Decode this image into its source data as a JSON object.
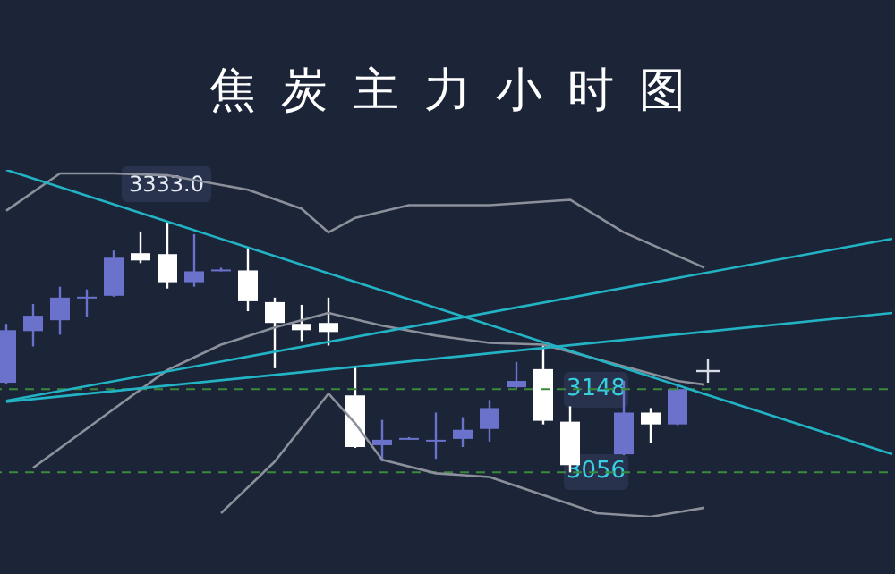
{
  "chart_data": {
    "type": "candlestick",
    "title": "焦炭主力小时图",
    "categories": [
      null,
      null,
      null,
      null,
      null,
      null,
      null,
      null,
      null,
      null,
      null,
      null,
      null,
      null,
      null,
      null,
      null,
      null,
      null,
      null,
      null,
      null,
      null,
      null,
      null,
      null,
      null,
      null,
      null,
      null,
      null,
      null,
      null,
      null
    ],
    "ohlc": [
      [
        3155,
        3220,
        3153,
        3213
      ],
      [
        3212,
        3242,
        3195,
        3229
      ],
      [
        3224,
        3261,
        3208,
        3249
      ],
      [
        3249,
        3258,
        3228,
        3250
      ],
      [
        3251,
        3301,
        3250,
        3293
      ],
      [
        3298,
        3322,
        3287,
        3290
      ],
      [
        3297,
        3333,
        3259,
        3266
      ],
      [
        3266,
        3319,
        3261,
        3278
      ],
      [
        3279,
        3282,
        3278,
        3280
      ],
      [
        3279,
        3305,
        3234,
        3245
      ],
      [
        3244,
        3249,
        3171,
        3221
      ],
      [
        3220,
        3241,
        3201,
        3213
      ],
      [
        3221,
        3249,
        3196,
        3211
      ],
      [
        3141,
        3173,
        3083,
        3084
      ],
      [
        3086,
        3114,
        3068,
        3092
      ],
      [
        3093,
        3095,
        3092,
        3094
      ],
      [
        3091,
        3122,
        3071,
        3092
      ],
      [
        3093,
        3117,
        3084,
        3103
      ],
      [
        3104,
        3136,
        3090,
        3127
      ],
      [
        3150,
        3178,
        3149,
        3157
      ],
      [
        3170,
        3196,
        3109,
        3113
      ],
      [
        3112,
        3129,
        3056,
        3064
      ],
      null,
      [
        3076,
        3157,
        3075,
        3122
      ],
      [
        3122,
        3127,
        3088,
        3109
      ],
      [
        3109,
        3151,
        3108,
        3148
      ],
      null,
      null,
      null,
      null,
      null,
      null,
      null,
      null
    ],
    "colors": [
      "#6a72cc",
      "#6a72cc",
      "#6a72cc",
      "#6a72cc",
      "#6a72cc",
      "#ffffff",
      "#ffffff",
      "#6a72cc",
      "#6a72cc",
      "#ffffff",
      "#ffffff",
      "#ffffff",
      "#ffffff",
      "#ffffff",
      "#6a72cc",
      "#6a72cc",
      "#6a72cc",
      "#6a72cc",
      "#6a72cc",
      "#6a72cc",
      "#ffffff",
      "#ffffff",
      null,
      "#6a72cc",
      "#ffffff",
      "#6a72cc",
      null,
      null,
      null,
      null,
      null,
      null,
      null,
      null
    ],
    "series": [
      {
        "type": "line",
        "color": "#8c909a",
        "values": [
          3345,
          null,
          3386,
          null,
          3386,
          null,
          3384,
          null,
          null,
          3368,
          null,
          3347,
          3321,
          3337,
          null,
          3351,
          null,
          null,
          3351,
          null,
          null,
          3357,
          null,
          3321,
          null,
          null,
          3282,
          null,
          null,
          null,
          null,
          null,
          null,
          null
        ]
      },
      {
        "type": "line",
        "color": "#8c909a",
        "values": [
          null,
          3061,
          null,
          null,
          3126,
          null,
          3169,
          null,
          3197,
          null,
          3216,
          null,
          3232,
          null,
          3218,
          null,
          3207,
          null,
          3199,
          null,
          3197,
          null,
          null,
          3173,
          null,
          3157,
          3153,
          null,
          null,
          null,
          null,
          null,
          null,
          null
        ]
      },
      {
        "type": "line",
        "color": "#8c909a",
        "values": [
          null,
          null,
          null,
          null,
          null,
          null,
          null,
          null,
          3011,
          null,
          3068,
          null,
          3143,
          3110,
          3070,
          null,
          3055,
          null,
          3051,
          null,
          3031,
          null,
          3011,
          null,
          3007,
          null,
          3017,
          null,
          null,
          null,
          null,
          null,
          null,
          null
        ]
      },
      {
        "type": "line",
        "color": "#22b4c4",
        "values": [
          3390,
          null,
          null,
          null,
          null,
          null,
          null,
          null,
          null,
          null,
          null,
          null,
          null,
          null,
          null,
          null,
          null,
          null,
          null,
          null,
          null,
          null,
          null,
          null,
          null,
          null,
          null,
          null,
          null,
          null,
          null,
          null,
          null,
          3076
        ]
      },
      {
        "type": "line",
        "color": "#22b4c4",
        "values": [
          3135,
          null,
          null,
          null,
          null,
          null,
          null,
          null,
          null,
          null,
          null,
          null,
          null,
          null,
          null,
          null,
          null,
          null,
          null,
          null,
          null,
          null,
          null,
          null,
          null,
          null,
          null,
          null,
          null,
          null,
          null,
          null,
          null,
          3314
        ]
      },
      {
        "type": "line",
        "color": "#22b4c4",
        "values": [
          3134,
          null,
          null,
          null,
          null,
          null,
          null,
          null,
          null,
          null,
          null,
          null,
          null,
          null,
          null,
          null,
          null,
          null,
          null,
          null,
          null,
          null,
          null,
          null,
          null,
          null,
          null,
          null,
          null,
          null,
          null,
          null,
          null,
          3232
        ]
      }
    ],
    "ref_lines": [
      {
        "axis": "y",
        "value": 3148,
        "label": "3148",
        "color": "#3a8a3a",
        "line_style": "dashed"
      },
      {
        "axis": "y",
        "value": 3056,
        "label": "3056",
        "color": "#3a8a3a",
        "line_style": "dashed"
      }
    ],
    "annotations": [
      {
        "text": "3333.0",
        "y": 3333
      }
    ],
    "tick_labels": false
  }
}
